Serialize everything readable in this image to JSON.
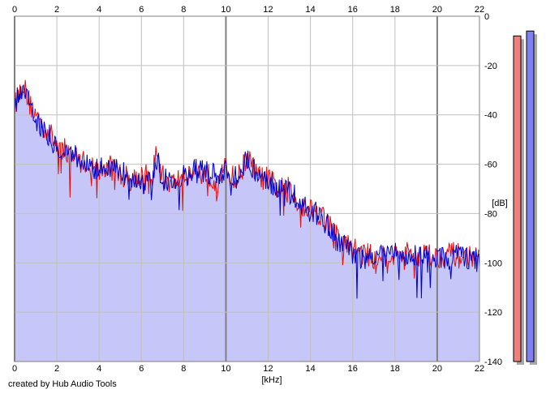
{
  "credit": "created by Hub Audio Tools",
  "colors": {
    "background": "#ffffff",
    "plot_background": "#ffffff",
    "grid_minor": "#c0c0c0",
    "grid_major": "#808080",
    "fill": "#c6c6f8",
    "channel_left": "#e01010",
    "channel_right": "#0000c8",
    "meter_left": "#f08080",
    "meter_right": "#8080f0",
    "meter_shadow": "#a8a8a8"
  },
  "chart_data": {
    "type": "line",
    "title": "",
    "xlabel": "[kHz]",
    "ylabel": "[dB]",
    "xlim": [
      0,
      22
    ],
    "ylim": [
      -140,
      0
    ],
    "x_ticks": [
      "0",
      "2",
      "4",
      "6",
      "8",
      "10",
      "12",
      "14",
      "16",
      "18",
      "20",
      "22"
    ],
    "y_ticks": [
      "0",
      "-20",
      "-40",
      "-60",
      "-80",
      "-100",
      "-120",
      "-140"
    ],
    "x_tick_values": [
      0,
      2,
      4,
      6,
      8,
      10,
      12,
      14,
      16,
      18,
      20,
      22
    ],
    "y_tick_values": [
      0,
      -20,
      -40,
      -60,
      -80,
      -100,
      -120,
      -140
    ],
    "major_x_gridlines": [
      0,
      10,
      20
    ],
    "grid": true,
    "x": [
      0,
      0.2,
      0.4,
      0.6,
      0.8,
      1.0,
      1.3,
      1.6,
      2.0,
      2.5,
      3.0,
      3.5,
      4.0,
      4.5,
      5.0,
      5.5,
      6.0,
      6.5,
      6.7,
      7.0,
      7.5,
      8.0,
      8.5,
      9.0,
      9.5,
      10.0,
      10.5,
      11.0,
      11.5,
      12.0,
      12.5,
      13.0,
      13.5,
      14.0,
      14.5,
      15.0,
      15.5,
      16.0,
      16.5,
      17.0,
      17.5,
      18.0,
      18.5,
      19.0,
      19.5,
      20.0,
      20.5,
      21.0,
      21.5,
      22.0
    ],
    "series": [
      {
        "values": [
          -36,
          -32,
          -27,
          -33,
          -37,
          -40,
          -44,
          -47,
          -52,
          -55,
          -58,
          -60,
          -63,
          -61,
          -64,
          -66,
          -64,
          -66,
          -55,
          -65,
          -68,
          -64,
          -63,
          -64,
          -66,
          -62,
          -67,
          -57,
          -65,
          -66,
          -70,
          -70,
          -76,
          -78,
          -80,
          -86,
          -92,
          -94,
          -96,
          -98,
          -96,
          -97,
          -96,
          -97,
          -96,
          -98,
          -96,
          -97,
          -97,
          -99
        ]
      },
      {
        "values": [
          -38,
          -30,
          -28,
          -31,
          -36,
          -42,
          -45,
          -48,
          -53,
          -55,
          -57,
          -61,
          -62,
          -62,
          -63,
          -65,
          -65,
          -67,
          -57,
          -66,
          -67,
          -65,
          -62,
          -63,
          -65,
          -63,
          -66,
          -58,
          -64,
          -67,
          -69,
          -71,
          -75,
          -79,
          -81,
          -87,
          -93,
          -97,
          -98,
          -97,
          -98,
          -96,
          -98,
          -96,
          -98,
          -97,
          -98,
          -96,
          -98,
          -100
        ]
      }
    ],
    "level_meter": {
      "values": [
        -8,
        -6
      ],
      "range": [
        -140,
        0
      ]
    }
  }
}
